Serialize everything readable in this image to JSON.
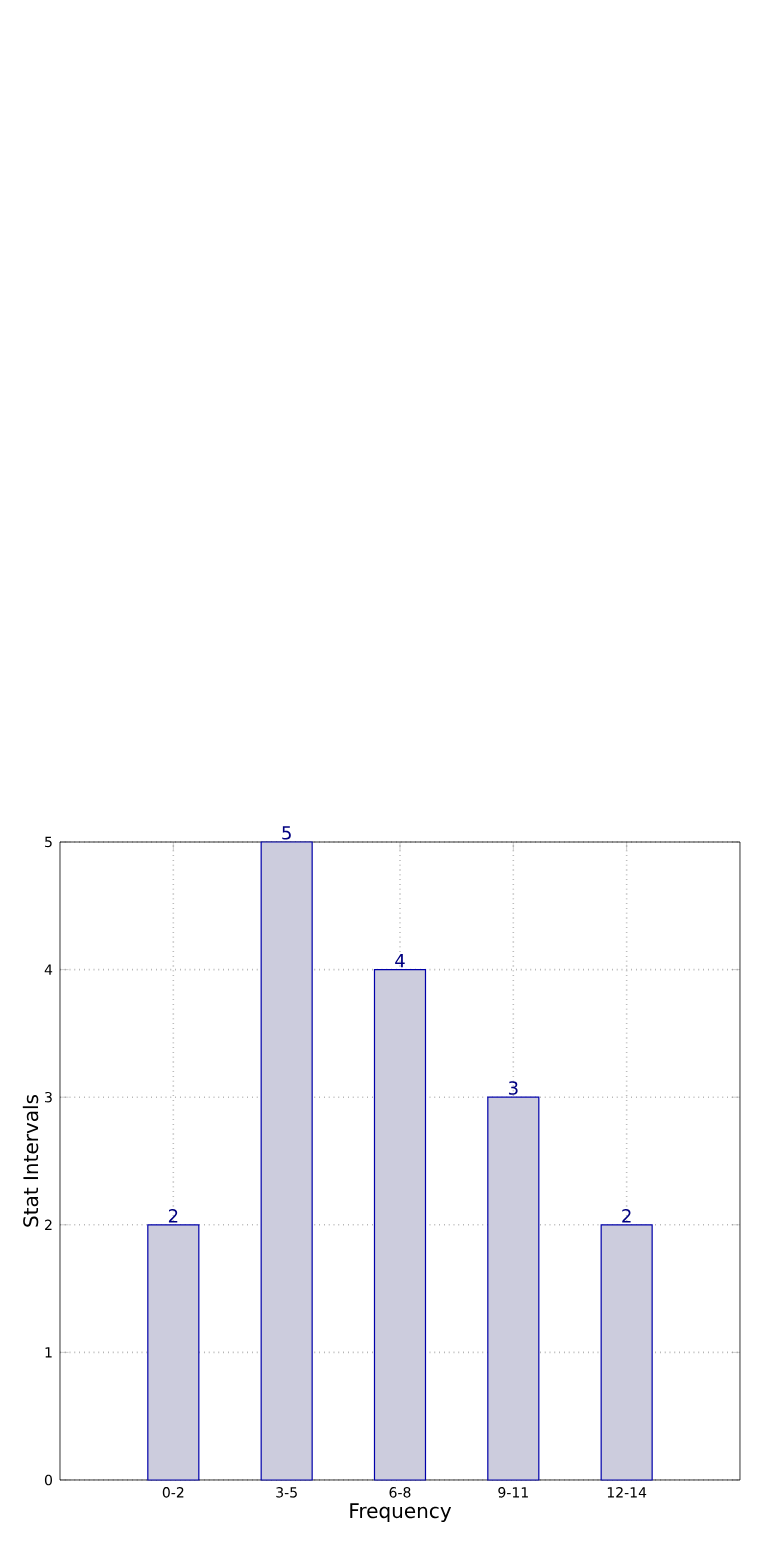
{
  "chart_data": {
    "type": "bar",
    "xlabel": "Frequency",
    "ylabel": "Stat Intervals",
    "categories": [
      "0-2",
      "3-5",
      "6-8",
      "9-11",
      "12-14"
    ],
    "values": [
      2,
      5,
      4,
      3,
      2
    ],
    "color": "#ccccdd",
    "ylim": [
      0,
      5
    ],
    "yticks": [
      0,
      1,
      2,
      3,
      4,
      5
    ],
    "grid": true,
    "data_labels": true
  }
}
